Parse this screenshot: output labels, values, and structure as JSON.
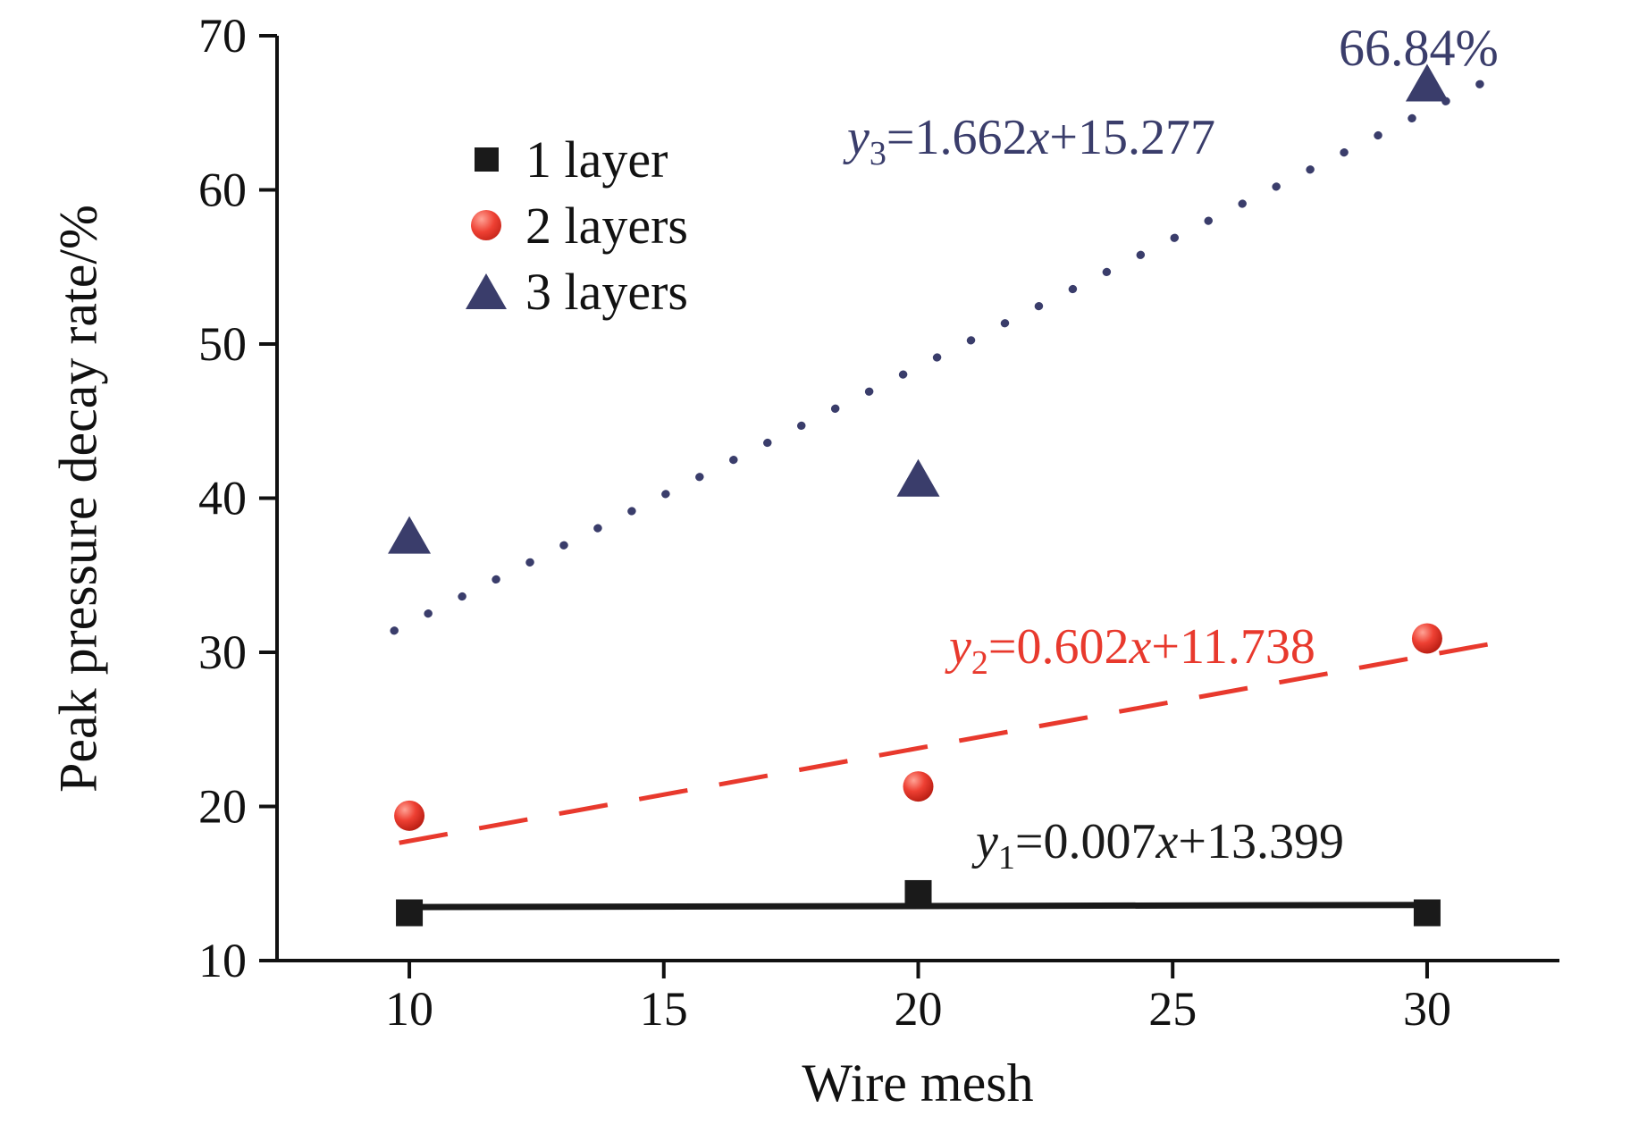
{
  "chart_data": {
    "type": "scatter",
    "title": "",
    "xlabel": "Wire mesh",
    "ylabel": "Peak pressure decay rate/%",
    "xlim": [
      7.4,
      32.6
    ],
    "ylim": [
      10,
      70
    ],
    "x_ticks": [
      10,
      15,
      20,
      25,
      30
    ],
    "y_ticks": [
      10,
      20,
      30,
      40,
      50,
      60,
      70
    ],
    "grid": false,
    "legend_position": "upper-left-inside",
    "series": [
      {
        "name": "1 layer",
        "marker": "square",
        "color": "#1a1a1a",
        "x": [
          10,
          20,
          30
        ],
        "y": [
          13.1,
          14.35,
          13.1
        ],
        "fit": {
          "slope": 0.007,
          "intercept": 13.399,
          "line_style": "solid",
          "x_range": [
            10,
            30
          ]
        }
      },
      {
        "name": "2 layers",
        "marker": "circle",
        "color": "#e8392d",
        "x": [
          10,
          20,
          30
        ],
        "y": [
          19.4,
          21.3,
          30.9
        ],
        "fit": {
          "slope": 0.602,
          "intercept": 11.738,
          "line_style": "dashed",
          "x_range": [
            9.8,
            31.6
          ]
        }
      },
      {
        "name": "3 layers",
        "marker": "triangle",
        "color": "#3a3d6b",
        "x": [
          10,
          20,
          30
        ],
        "y": [
          37.5,
          41.2,
          66.84
        ],
        "fit": {
          "slope": 1.662,
          "intercept": 15.277,
          "line_style": "dotted",
          "x_range": [
            9.7,
            31.3
          ]
        }
      }
    ],
    "point_label": {
      "text": "66.84%",
      "series": "3 layers",
      "x": 30,
      "y": 66.84
    }
  },
  "equations": {
    "y1": {
      "var": "y",
      "sub": "1",
      "mid": "=0.007",
      "var2": "x",
      "tail": "+13.399"
    },
    "y2": {
      "var": "y",
      "sub": "2",
      "mid": "=0.602",
      "var2": "x",
      "tail": "+11.738"
    },
    "y3": {
      "var": "y",
      "sub": "3",
      "mid": "=1.662",
      "var2": "x",
      "tail": "+15.277"
    }
  },
  "colors": {
    "axis": "#111111",
    "series_1_layer": "#1a1a1a",
    "series_2_layers": "#e8392d",
    "series_3_layers": "#3a3d6b"
  }
}
